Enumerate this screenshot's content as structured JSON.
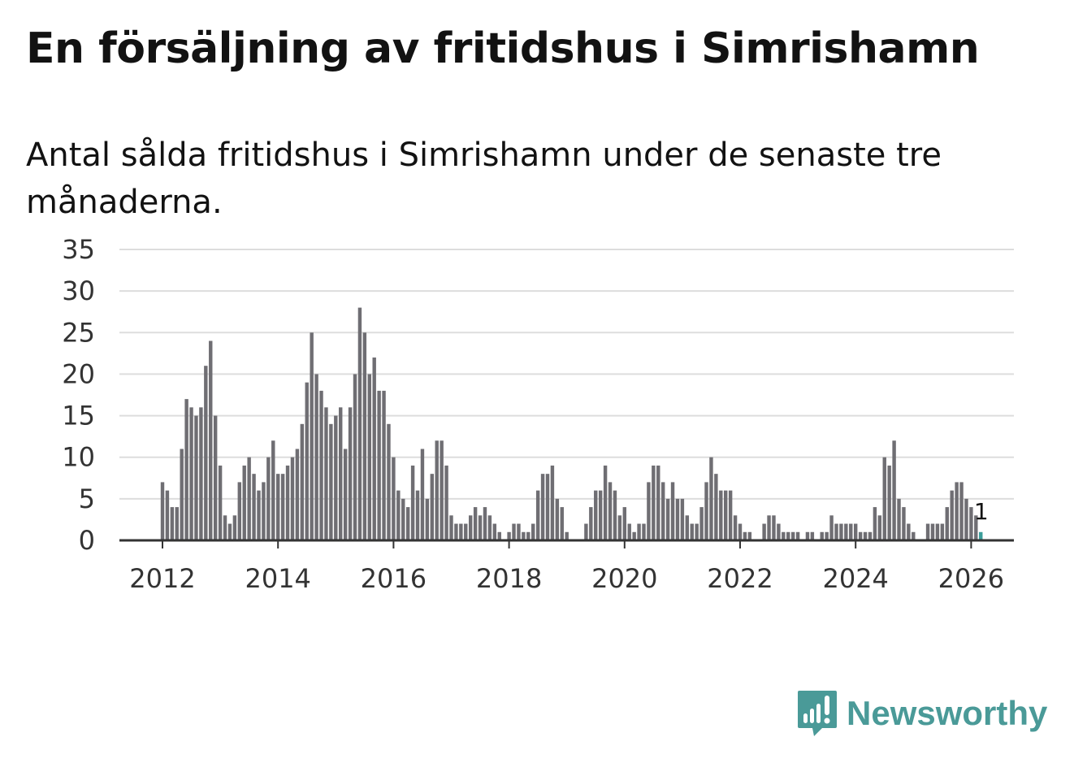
{
  "title": "En försäljning av fritidshus i Simrishamn",
  "subtitle": "Antal sålda fritidshus i Simrishamn under de senaste tre månaderna.",
  "brand": {
    "name": "Newsworthy",
    "color": "#4a9a98",
    "icon": "newsworthy-logo-icon"
  },
  "colors": {
    "bar": "#6f6e73",
    "highlight": "#3b9d9a",
    "grid": "#dddddd",
    "axis": "#333333"
  },
  "chart_data": {
    "type": "bar",
    "ylim": [
      0,
      35
    ],
    "yticks": [
      "0",
      "5",
      "10",
      "15",
      "20",
      "25",
      "30",
      "35"
    ],
    "xticks": [
      "2012",
      "2014",
      "2016",
      "2018",
      "2020",
      "2022",
      "2024",
      "2026"
    ],
    "grid": true,
    "legend": "none",
    "series_start": "2012-01",
    "frequency": "monthly",
    "values": [
      7,
      6,
      4,
      4,
      11,
      17,
      16,
      15,
      16,
      21,
      24,
      15,
      9,
      3,
      2,
      3,
      7,
      9,
      10,
      8,
      6,
      7,
      10,
      12,
      8,
      8,
      9,
      10,
      11,
      14,
      19,
      25,
      20,
      18,
      16,
      14,
      15,
      16,
      11,
      16,
      20,
      28,
      25,
      20,
      22,
      18,
      18,
      14,
      10,
      6,
      5,
      4,
      9,
      6,
      11,
      5,
      8,
      12,
      12,
      9,
      3,
      2,
      2,
      2,
      3,
      4,
      3,
      4,
      3,
      2,
      1,
      0,
      1,
      2,
      2,
      1,
      1,
      2,
      6,
      8,
      8,
      9,
      5,
      4,
      1,
      0,
      0,
      0,
      2,
      4,
      6,
      6,
      9,
      7,
      6,
      3,
      4,
      2,
      1,
      2,
      2,
      7,
      9,
      9,
      7,
      5,
      7,
      5,
      5,
      3,
      2,
      2,
      4,
      7,
      10,
      8,
      6,
      6,
      6,
      3,
      2,
      1,
      1,
      0,
      0,
      2,
      3,
      3,
      2,
      1,
      1,
      1,
      1,
      0,
      1,
      1,
      0,
      1,
      1,
      3,
      2,
      2,
      2,
      2,
      2,
      1,
      1,
      1,
      4,
      3,
      10,
      9,
      12,
      5,
      4,
      2,
      1,
      0,
      0,
      2,
      2,
      2,
      2,
      4,
      6,
      7,
      7,
      5,
      4,
      3,
      1
    ],
    "highlight_index": 170,
    "annotations": [
      {
        "index": 170,
        "label": "1"
      }
    ]
  }
}
